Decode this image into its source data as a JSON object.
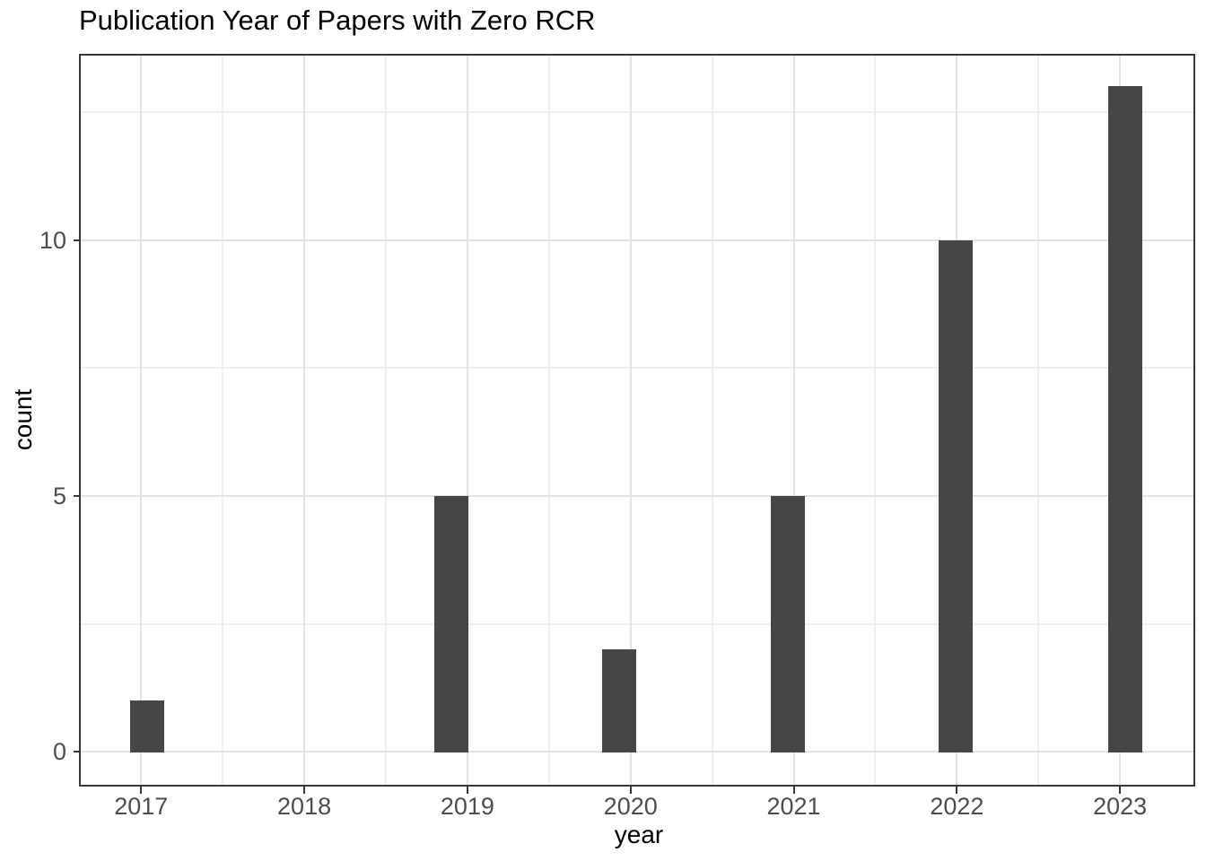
{
  "title": "Publication Year of Papers with Zero RCR",
  "chart_data": {
    "type": "bar",
    "subtype": "histogram",
    "title": "Publication Year of Papers with Zero RCR",
    "xlabel": "year",
    "ylabel": "count",
    "categories": [
      "2017",
      "2018",
      "2019",
      "2020",
      "2021",
      "2022",
      "2023"
    ],
    "values": [
      1,
      0,
      5,
      2,
      5,
      10,
      13
    ],
    "bars": [
      {
        "x": 2017.037,
        "count": 1
      },
      {
        "x": 2018.9,
        "count": 5
      },
      {
        "x": 2019.929,
        "count": 2
      },
      {
        "x": 2020.964,
        "count": 5
      },
      {
        "x": 2021.992,
        "count": 10
      },
      {
        "x": 2023.03,
        "count": 13
      }
    ],
    "bar_width_x": 0.208,
    "xlim": [
      2016.63,
      2023.45
    ],
    "ylim": [
      -0.64,
      13.6
    ],
    "x_ticks": [
      2017,
      2018,
      2019,
      2020,
      2021,
      2022,
      2023
    ],
    "x_tick_labels": [
      "2017",
      "2018",
      "2019",
      "2020",
      "2021",
      "2022",
      "2023"
    ],
    "y_ticks": [
      0,
      5,
      10
    ],
    "y_tick_labels": [
      "0",
      "5",
      "10"
    ],
    "x_minor_ticks": [
      2017.5,
      2018.5,
      2019.5,
      2020.5,
      2021.5,
      2022.5
    ],
    "y_minor_ticks": [
      2.5,
      7.5,
      12.5
    ],
    "grid": true,
    "legend": false,
    "colors": {
      "bar_fill": "#464646",
      "panel_border": "#383838",
      "tick_mark": "#383838",
      "grid_major": "#e3e3e3",
      "grid_minor": "#efefef",
      "tick_label": "#4d4d4d",
      "axis_title": "#000000",
      "title": "#000000",
      "background": "#ffffff"
    }
  }
}
